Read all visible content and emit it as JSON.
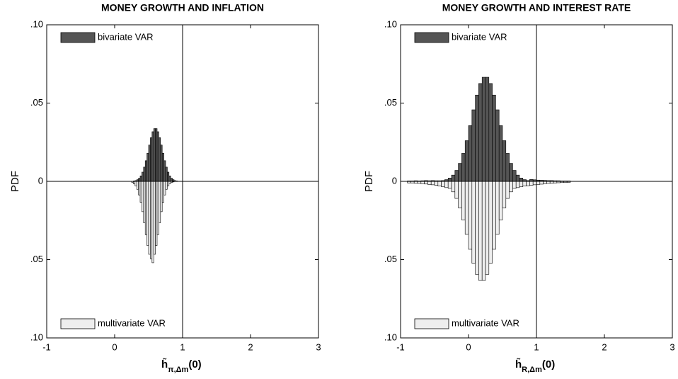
{
  "chart_data": [
    {
      "type": "mirrored-histogram",
      "title": "MONEY GROWTH AND INFLATION",
      "ylabel": "PDF",
      "xlabel": {
        "base": "h̃",
        "sub": "π,Δm",
        "tail": "(0)"
      },
      "xlim": [
        -1,
        3
      ],
      "xticks": [
        -1,
        0,
        1,
        2,
        3
      ],
      "ylim": [
        -0.1,
        0.1
      ],
      "yticks": [
        {
          "value": 0.1,
          "label": ".10"
        },
        {
          "value": 0.05,
          "label": ".05"
        },
        0,
        {
          "value": -0.05,
          "label": ".05"
        },
        {
          "value": -0.1,
          "label": ".10"
        }
      ],
      "vline": 1,
      "bins": [
        0.25,
        0.275,
        0.3,
        0.325,
        0.35,
        0.375,
        0.4,
        0.425,
        0.45,
        0.475,
        0.5,
        0.525,
        0.55,
        0.575,
        0.6,
        0.625,
        0.65,
        0.675,
        0.7,
        0.725,
        0.75,
        0.775,
        0.8,
        0.825,
        0.85,
        0.875,
        0.9,
        0.925,
        0.95
      ],
      "series": [
        {
          "name": "bivariate VAR",
          "color": "#555555",
          "legend_loc": "upper left",
          "values": [
            0.0001,
            0.0003,
            0.0005,
            0.0011,
            0.002,
            0.0035,
            0.0059,
            0.0091,
            0.0132,
            0.018,
            0.0232,
            0.0279,
            0.0317,
            0.0337,
            0.0337,
            0.0317,
            0.0279,
            0.0232,
            0.018,
            0.0132,
            0.0091,
            0.0059,
            0.0035,
            0.002,
            0.0011,
            0.0005,
            0.0003,
            0.0001
          ]
        },
        {
          "name": "multivariate VAR",
          "color": "#eeeeee",
          "legend_loc": "lower left",
          "values": [
            -0.0007,
            -0.0016,
            -0.0029,
            -0.0051,
            -0.0087,
            -0.0134,
            -0.0194,
            -0.0265,
            -0.0341,
            -0.041,
            -0.0466,
            -0.0495,
            -0.052,
            -0.0466,
            -0.041,
            -0.0341,
            -0.0265,
            -0.0194,
            -0.0134,
            -0.0087,
            -0.0051,
            -0.0029,
            -0.0016,
            -0.0007,
            -0.0004,
            -0.0001,
            0,
            0
          ]
        }
      ]
    },
    {
      "type": "mirrored-histogram",
      "title": "MONEY GROWTH AND INTEREST RATE",
      "ylabel": "PDF",
      "xlabel": {
        "base": "h̃",
        "sub": "R,Δm",
        "tail": "(0)"
      },
      "xlim": [
        -1,
        3
      ],
      "xticks": [
        -1,
        0,
        1,
        2,
        3
      ],
      "ylim": [
        -0.1,
        0.1
      ],
      "yticks": [
        {
          "value": 0.1,
          "label": ".10"
        },
        {
          "value": 0.05,
          "label": ".05"
        },
        0,
        {
          "value": -0.05,
          "label": ".05"
        },
        {
          "value": -0.1,
          "label": ".10"
        }
      ],
      "vline": 1,
      "bins": [
        -0.9,
        -0.85,
        -0.8,
        -0.75,
        -0.7,
        -0.65,
        -0.6,
        -0.55,
        -0.5,
        -0.45,
        -0.4,
        -0.35,
        -0.3,
        -0.25,
        -0.2,
        -0.15,
        -0.1,
        -0.05,
        0,
        0.05,
        0.1,
        0.15,
        0.2,
        0.25,
        0.3,
        0.35,
        0.4,
        0.45,
        0.5,
        0.55,
        0.6,
        0.65,
        0.7,
        0.75,
        0.8,
        0.85,
        0.9,
        0.95,
        1,
        1.05,
        1.1,
        1.15,
        1.2,
        1.25,
        1.3,
        1.35,
        1.4,
        1.45,
        1.5
      ],
      "series": [
        {
          "name": "bivariate VAR",
          "color": "#555555",
          "legend_loc": "upper left",
          "values": [
            0.0003,
            0.0003,
            0.0004,
            0.0003,
            0.0004,
            0.0005,
            0.0004,
            0.0005,
            0.0004,
            0.0004,
            0.0005,
            0.0011,
            0.0021,
            0.004,
            0.007,
            0.0115,
            0.0179,
            0.026,
            0.0356,
            0.0457,
            0.0551,
            0.0625,
            0.0665,
            0.0665,
            0.0625,
            0.0551,
            0.0457,
            0.0356,
            0.026,
            0.0179,
            0.0115,
            0.007,
            0.004,
            0.0021,
            0.0011,
            0.0005,
            0.0012,
            0.001,
            0.0008,
            0.0007,
            0.0006,
            0.0005,
            0.0005,
            0.0004,
            0.0004,
            0.0003,
            0.0003,
            0.0003
          ]
        },
        {
          "name": "multivariate VAR",
          "color": "#eeeeee",
          "legend_loc": "lower left",
          "values": [
            -0.001,
            -0.001,
            -0.0012,
            -0.0013,
            -0.0015,
            -0.0017,
            -0.002,
            -0.0022,
            -0.0025,
            -0.003,
            -0.0035,
            -0.004,
            -0.0045,
            -0.0067,
            -0.0109,
            -0.017,
            -0.0247,
            -0.0338,
            -0.0434,
            -0.0523,
            -0.0594,
            -0.0632,
            -0.0632,
            -0.0594,
            -0.0523,
            -0.0434,
            -0.0338,
            -0.0247,
            -0.017,
            -0.0109,
            -0.0067,
            -0.0045,
            -0.004,
            -0.0035,
            -0.003,
            -0.0028,
            -0.0025,
            -0.0022,
            -0.002,
            -0.0018,
            -0.0015,
            -0.0013,
            -0.0012,
            -0.001,
            -0.0009,
            -0.0008,
            -0.0007,
            -0.0006
          ]
        }
      ]
    }
  ]
}
